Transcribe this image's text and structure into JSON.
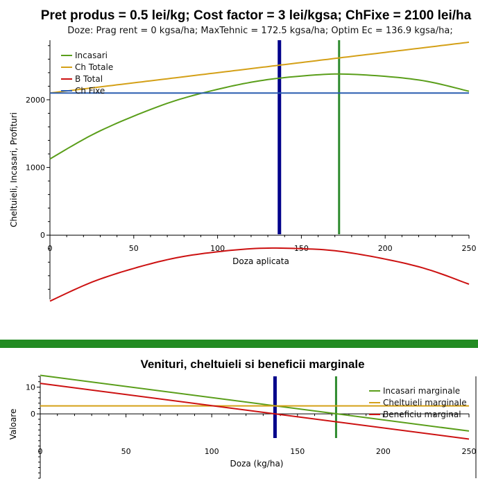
{
  "chart_data": [
    {
      "type": "line",
      "title": "Pret produs = 0.5 lei/kg; Cost factor = 3 lei/kgsa; ChFixe = 2100 lei/ha",
      "subtitle": "Doze: Prag rent = 0 kgsa/ha; MaxTehnic = 172.5 kgsa/ha; Optim Ec = 136.9 kgsa/ha;",
      "xlabel": "Doza aplicata",
      "ylabel": "Cheltuieli, Incasari, Profituri",
      "xlim": [
        0,
        250
      ],
      "ylim": [
        -950,
        2880
      ],
      "x_ticks": [
        "0",
        "50",
        "100",
        "150",
        "200",
        "250"
      ],
      "y_ticks": [
        "0",
        "1000",
        "2000"
      ],
      "x_tick_values": [
        0,
        50,
        100,
        150,
        200,
        250
      ],
      "y_tick_values": [
        0,
        1000,
        2000
      ],
      "legend_position": "top-left",
      "x": [
        0,
        25,
        50,
        75,
        100,
        125,
        150,
        172.5,
        200,
        225,
        250
      ],
      "series": [
        {
          "name": "Incasari",
          "color": "#5a9e1a",
          "values": [
            1125,
            1480,
            1758,
            1988,
            2154,
            2280,
            2350,
            2380,
            2346,
            2272,
            2125
          ]
        },
        {
          "name": "Ch Totale",
          "color": "#d4a017",
          "values": [
            2100,
            2175,
            2250,
            2325,
            2400,
            2475,
            2550,
            2618,
            2700,
            2775,
            2850
          ]
        },
        {
          "name": "B Total",
          "color": "#cc1111",
          "values": [
            -975,
            -695,
            -492,
            -337,
            -246,
            -195,
            -200,
            -238,
            -354,
            -503,
            -725
          ]
        },
        {
          "name": "Ch Fixe",
          "color": "#2a5db0",
          "values": [
            2100,
            2100,
            2100,
            2100,
            2100,
            2100,
            2100,
            2100,
            2100,
            2100,
            2100
          ]
        }
      ],
      "vlines": [
        {
          "x": 136.9,
          "color": "#00008b"
        },
        {
          "x": 172.5,
          "color": "#2e8b2e"
        }
      ]
    },
    {
      "type": "line",
      "title": "Venituri, cheltuieli si beneficii marginale",
      "xlabel": "Doza (kg/ha)",
      "ylabel": "Valoare",
      "xlim": [
        0,
        250
      ],
      "ylim": [
        -24,
        14
      ],
      "x_ticks": [
        "0",
        "50",
        "100",
        "150",
        "200",
        "250"
      ],
      "y_ticks": [
        "0",
        "10"
      ],
      "x_tick_values": [
        0,
        50,
        100,
        150,
        200,
        250
      ],
      "y_tick_values": [
        0,
        10
      ],
      "legend_position": "top-right",
      "x": [
        0,
        250
      ],
      "series": [
        {
          "name": "Incasari marginale",
          "color": "#5a9e1a",
          "values": [
            14.4,
            -6.4
          ]
        },
        {
          "name": "Cheltuieli marginale",
          "color": "#d4a017",
          "values": [
            3,
            3
          ]
        },
        {
          "name": "Beneficiu marginal",
          "color": "#cc1111",
          "values": [
            11.4,
            -9.4
          ]
        }
      ],
      "vlines": [
        {
          "x": 136.9,
          "color": "#00008b"
        },
        {
          "x": 172.5,
          "color": "#2e8b2e"
        }
      ]
    }
  ],
  "separator_color": "#228b22"
}
